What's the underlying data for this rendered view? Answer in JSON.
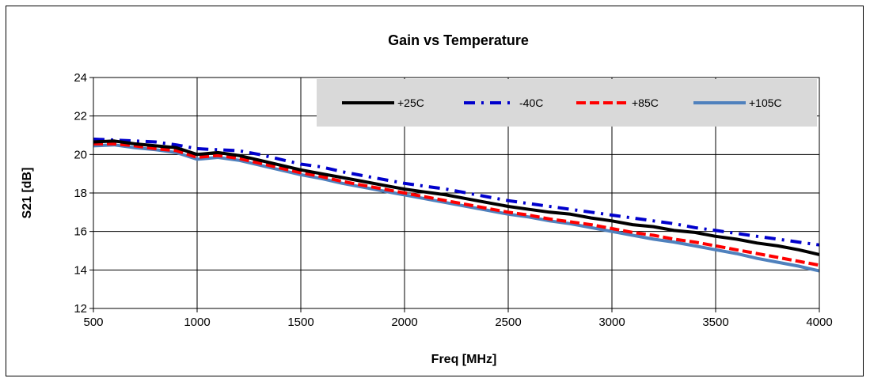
{
  "chart_data": {
    "type": "line",
    "title": "Gain vs Temperature",
    "xlabel": "Freq [MHz]",
    "ylabel": "S21 [dB]",
    "xlim": [
      500,
      4000
    ],
    "ylim": [
      12,
      24
    ],
    "xticks": [
      500,
      1000,
      1500,
      2000,
      2500,
      3000,
      3500,
      4000
    ],
    "yticks": [
      12,
      14,
      16,
      18,
      20,
      22,
      24
    ],
    "grid": true,
    "legend_position": "top-right",
    "legend_background": "#d9d9d9",
    "x": [
      500,
      600,
      700,
      800,
      900,
      1000,
      1100,
      1200,
      1300,
      1400,
      1500,
      1600,
      1700,
      1800,
      1900,
      2000,
      2100,
      2200,
      2300,
      2400,
      2500,
      2600,
      2700,
      2800,
      2900,
      3000,
      3100,
      3200,
      3300,
      3400,
      3500,
      3600,
      3700,
      3800,
      3900,
      4000
    ],
    "series": [
      {
        "name": "+25C",
        "color": "#000000",
        "dash": "solid",
        "values": [
          20.65,
          20.7,
          20.55,
          20.45,
          20.35,
          20.0,
          20.1,
          19.95,
          19.7,
          19.45,
          19.2,
          19.0,
          18.8,
          18.6,
          18.4,
          18.2,
          18.05,
          17.9,
          17.7,
          17.5,
          17.3,
          17.15,
          17.0,
          16.9,
          16.7,
          16.55,
          16.35,
          16.25,
          16.05,
          15.95,
          15.75,
          15.6,
          15.4,
          15.25,
          15.05,
          14.8
        ]
      },
      {
        "name": "-40C",
        "color": "#0000cc",
        "dash": "dashdot",
        "values": [
          20.8,
          20.75,
          20.7,
          20.65,
          20.5,
          20.3,
          20.25,
          20.2,
          20.0,
          19.75,
          19.5,
          19.35,
          19.1,
          18.9,
          18.7,
          18.5,
          18.35,
          18.2,
          18.0,
          17.8,
          17.6,
          17.45,
          17.3,
          17.15,
          17.0,
          16.85,
          16.7,
          16.55,
          16.4,
          16.2,
          16.05,
          15.9,
          15.75,
          15.6,
          15.45,
          15.3
        ]
      },
      {
        "name": "+85C",
        "color": "#ff0000",
        "dash": "dashed",
        "values": [
          20.55,
          20.55,
          20.45,
          20.3,
          20.2,
          19.85,
          19.95,
          19.8,
          19.55,
          19.3,
          19.05,
          18.85,
          18.6,
          18.4,
          18.2,
          18.0,
          17.8,
          17.6,
          17.4,
          17.2,
          17.0,
          16.85,
          16.65,
          16.5,
          16.35,
          16.15,
          15.95,
          15.8,
          15.6,
          15.45,
          15.25,
          15.05,
          14.85,
          14.65,
          14.45,
          14.25
        ]
      },
      {
        "name": "+105C",
        "color": "#4f81bd",
        "dash": "solid",
        "values": [
          20.45,
          20.5,
          20.35,
          20.25,
          20.1,
          19.75,
          19.85,
          19.7,
          19.45,
          19.2,
          18.95,
          18.75,
          18.5,
          18.3,
          18.1,
          17.9,
          17.7,
          17.5,
          17.3,
          17.1,
          16.9,
          16.75,
          16.55,
          16.4,
          16.2,
          16.0,
          15.8,
          15.6,
          15.45,
          15.25,
          15.05,
          14.85,
          14.6,
          14.4,
          14.2,
          13.95
        ]
      }
    ]
  }
}
